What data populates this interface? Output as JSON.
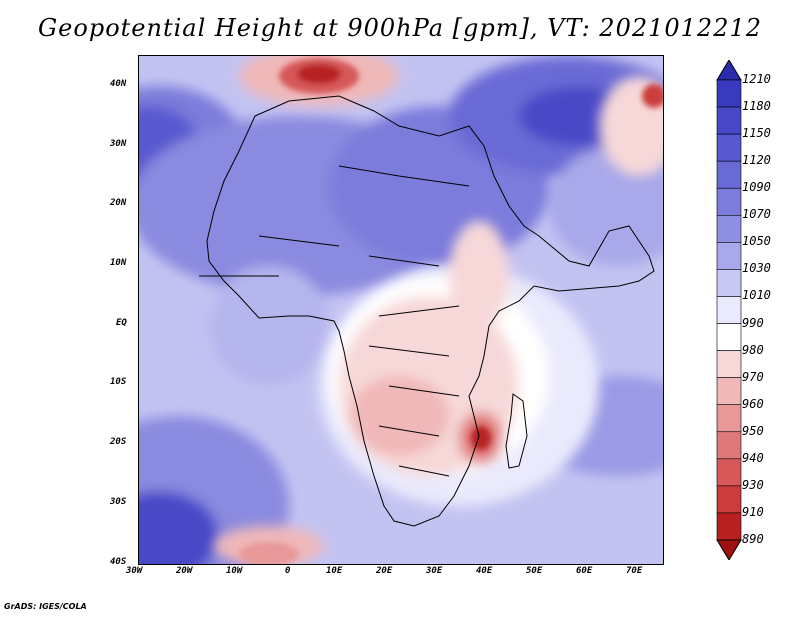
{
  "title": "Geopotential Height at 900hPa [gpm], VT: 2021012212",
  "credit": "GrADS: IGES/COLA",
  "map": {
    "region": "Africa and surrounding oceans",
    "lon_range": [
      -30,
      75
    ],
    "lat_range": [
      -40,
      45
    ],
    "lat_ticks": [
      "40N",
      "30N",
      "20N",
      "10N",
      "EQ",
      "10S",
      "20S",
      "30S",
      "40S"
    ],
    "lon_ticks": [
      "30W",
      "20W",
      "10W",
      "0",
      "10E",
      "20E",
      "30E",
      "40E",
      "50E",
      "60E",
      "70E"
    ]
  },
  "colorbar": {
    "labels": [
      "1210",
      "1180",
      "1150",
      "1120",
      "1090",
      "1070",
      "1050",
      "1030",
      "1010",
      "990",
      "980",
      "970",
      "960",
      "950",
      "940",
      "930",
      "910",
      "890"
    ],
    "colors": [
      "#2b2bb0",
      "#3a3abf",
      "#4848c8",
      "#5858d0",
      "#6a6ad6",
      "#7c7cdc",
      "#9090e2",
      "#a8a8ea",
      "#c8c8f4",
      "#eaeafc",
      "#ffffff",
      "#f7d8d8",
      "#f0b8b8",
      "#e89898",
      "#df7878",
      "#d65858",
      "#cc3c3c",
      "#b82020",
      "#a01010"
    ]
  }
}
